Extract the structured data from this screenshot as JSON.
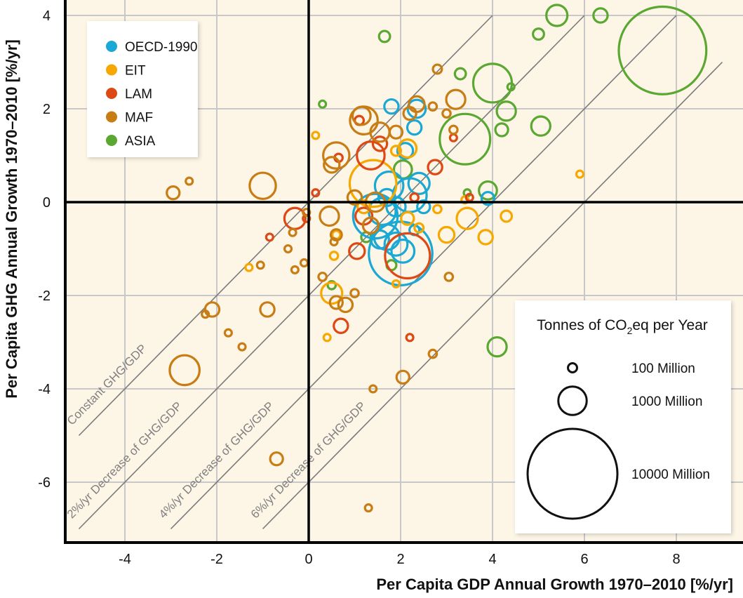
{
  "chart_data": {
    "type": "scatter",
    "subtype": "bubble",
    "title": "",
    "xlabel": "Per Capita GDP Annual Growth 1970–2010 [%/yr]",
    "ylabel": "Per Capita GHG Annual Growth 1970–2010 [%/yr]",
    "xlim": [
      -5.2,
      9.3
    ],
    "ylim": [
      -7.3,
      4.3
    ],
    "xticks": [
      -4,
      -2,
      0,
      2,
      4,
      6,
      8
    ],
    "yticks": [
      4,
      2,
      0,
      -2,
      -4,
      -6
    ],
    "xtick_labels": [
      "-4",
      "-2",
      "0",
      "2",
      "4",
      "6",
      "8"
    ],
    "ytick_labels": [
      "4",
      "2",
      "0",
      "-2",
      "-4",
      "-6"
    ],
    "grid": true,
    "background": "#fdf5e6",
    "legend": {
      "placement": "top-left",
      "entries": [
        {
          "name": "OECD-1990",
          "color": "#1aa8d4"
        },
        {
          "name": "EIT",
          "color": "#f7a800"
        },
        {
          "name": "LAM",
          "color": "#dd4814"
        },
        {
          "name": "MAF",
          "color": "#c87d14"
        },
        {
          "name": "ASIA",
          "color": "#5aa832"
        }
      ]
    },
    "size_legend": {
      "placement": "bottom-right",
      "title_prefix": "Tonnes of CO",
      "title_sub": "2",
      "title_suffix": "eq per Year",
      "entries": [
        {
          "label": "100 Million",
          "value": 100
        },
        {
          "label": "1000 Million",
          "value": 1000
        },
        {
          "label": "10000 Million",
          "value": 10000
        }
      ]
    },
    "reference_lines": [
      {
        "label": "Constant GHG/GDP",
        "offset": 0,
        "x_range": [
          -5,
          4
        ]
      },
      {
        "label": "2%/yr Decrease of GHG/GDP",
        "offset": -2,
        "x_range": [
          -5,
          6
        ]
      },
      {
        "label": "4%/yr Decrease of GHG/GDP",
        "offset": -4,
        "x_range": [
          -3,
          8
        ]
      },
      {
        "label": "6%/yr Decrease of GHG/GDP",
        "offset": -6,
        "x_range": [
          -1,
          9
        ]
      }
    ],
    "series": [
      {
        "name": "ASIA",
        "points": [
          [
            5.4,
            4.0,
            550
          ],
          [
            6.35,
            4.0,
            250
          ],
          [
            5.0,
            3.6,
            150
          ],
          [
            7.7,
            3.25,
            9500
          ],
          [
            1.65,
            3.55,
            150
          ],
          [
            4.0,
            2.55,
            1850
          ],
          [
            4.4,
            2.47,
            60
          ],
          [
            3.3,
            2.75,
            150
          ],
          [
            4.3,
            1.95,
            450
          ],
          [
            5.05,
            1.63,
            450
          ],
          [
            4.2,
            1.55,
            200
          ],
          [
            3.4,
            1.35,
            3150
          ],
          [
            0.3,
            2.1,
            60
          ],
          [
            3.9,
            0.25,
            400
          ],
          [
            3.45,
            0.2,
            60
          ],
          [
            2.05,
            0.7,
            400
          ],
          [
            0.5,
            -1.78,
            80
          ],
          [
            1.25,
            -0.75,
            120
          ],
          [
            1.8,
            -1.35,
            120
          ],
          [
            4.1,
            -3.1,
            450
          ]
        ]
      },
      {
        "name": "OECD-1990",
        "points": [
          [
            1.8,
            2.05,
            250
          ],
          [
            2.35,
            2.0,
            400
          ],
          [
            2.3,
            1.6,
            250
          ],
          [
            2.1,
            1.1,
            300
          ],
          [
            1.75,
            0.35,
            1000
          ],
          [
            2.4,
            0.4,
            550
          ],
          [
            1.45,
            -0.3,
            2450
          ],
          [
            1.6,
            -0.2,
            900
          ],
          [
            1.9,
            -0.1,
            450
          ],
          [
            2.2,
            0.15,
            1400
          ],
          [
            1.7,
            -0.75,
            800
          ],
          [
            2.0,
            -1.1,
            5000
          ],
          [
            1.9,
            -0.9,
            650
          ],
          [
            2.05,
            -1.05,
            650
          ],
          [
            1.55,
            -0.8,
            400
          ],
          [
            2.3,
            -0.6,
            120
          ],
          [
            2.5,
            -0.1,
            200
          ],
          [
            3.9,
            0.08,
            200
          ],
          [
            1.7,
            0.1,
            350
          ]
        ]
      },
      {
        "name": "EIT",
        "points": [
          [
            1.4,
            0.4,
            2700
          ],
          [
            2.15,
            1.15,
            400
          ],
          [
            1.9,
            1.1,
            120
          ],
          [
            0.15,
            1.43,
            60
          ],
          [
            2.15,
            -0.35,
            200
          ],
          [
            2.4,
            -0.55,
            100
          ],
          [
            2.8,
            -0.15,
            80
          ],
          [
            3.0,
            -0.7,
            300
          ],
          [
            3.45,
            -0.35,
            550
          ],
          [
            3.85,
            -0.75,
            250
          ],
          [
            4.3,
            -0.3,
            150
          ],
          [
            3.4,
            0.05,
            60
          ],
          [
            5.9,
            0.6,
            60
          ],
          [
            0.6,
            -0.7,
            80
          ],
          [
            0.55,
            -1.15,
            80
          ],
          [
            0.5,
            -1.95,
            550
          ],
          [
            0.4,
            -2.9,
            60
          ],
          [
            1.9,
            -1.75,
            60
          ],
          [
            -1.3,
            -1.4,
            60
          ],
          [
            1.2,
            -0.1,
            200
          ]
        ]
      },
      {
        "name": "LAM",
        "points": [
          [
            1.35,
            1.0,
            950
          ],
          [
            1.55,
            1.25,
            250
          ],
          [
            1.1,
            1.75,
            100
          ],
          [
            0.65,
            0.95,
            80
          ],
          [
            0.15,
            0.2,
            60
          ],
          [
            2.75,
            0.75,
            250
          ],
          [
            3.15,
            1.38,
            60
          ],
          [
            -0.3,
            -0.35,
            550
          ],
          [
            -0.05,
            -0.35,
            60
          ],
          [
            -0.85,
            -0.75,
            60
          ],
          [
            1.05,
            -1.05,
            300
          ],
          [
            1.2,
            -0.3,
            350
          ],
          [
            2.15,
            -1.15,
            2500
          ],
          [
            0.7,
            -2.65,
            250
          ],
          [
            2.2,
            -2.9,
            60
          ],
          [
            2.3,
            0.1,
            80
          ],
          [
            3.5,
            0.1,
            60
          ]
        ]
      },
      {
        "name": "MAF",
        "points": [
          [
            -2.95,
            0.2,
            200
          ],
          [
            -2.6,
            0.45,
            60
          ],
          [
            -1.0,
            0.35,
            850
          ],
          [
            0.6,
            1.0,
            850
          ],
          [
            0.5,
            0.8,
            300
          ],
          [
            1.2,
            1.75,
            950
          ],
          [
            1.15,
            1.85,
            400
          ],
          [
            1.55,
            1.5,
            450
          ],
          [
            1.9,
            1.5,
            200
          ],
          [
            2.2,
            1.9,
            200
          ],
          [
            2.35,
            2.1,
            300
          ],
          [
            2.8,
            2.85,
            100
          ],
          [
            2.7,
            2.05,
            80
          ],
          [
            3.2,
            2.2,
            450
          ],
          [
            3.0,
            1.9,
            80
          ],
          [
            3.15,
            1.55,
            80
          ],
          [
            1.45,
            0.0,
            450
          ],
          [
            1.0,
            0.1,
            250
          ],
          [
            0.45,
            -0.3,
            450
          ],
          [
            0.6,
            -0.7,
            150
          ],
          [
            0.55,
            -0.85,
            60
          ],
          [
            -0.05,
            -0.22,
            60
          ],
          [
            -0.35,
            -0.65,
            60
          ],
          [
            -0.45,
            -1.0,
            60
          ],
          [
            -0.3,
            -1.45,
            60
          ],
          [
            -0.1,
            -1.3,
            60
          ],
          [
            0.3,
            -1.6,
            80
          ],
          [
            -1.05,
            -1.35,
            60
          ],
          [
            -0.9,
            -2.3,
            250
          ],
          [
            -2.1,
            -2.3,
            250
          ],
          [
            -2.25,
            -2.4,
            60
          ],
          [
            -1.75,
            -2.8,
            60
          ],
          [
            -1.45,
            -3.1,
            60
          ],
          [
            -2.7,
            -3.6,
            1100
          ],
          [
            0.8,
            -2.2,
            250
          ],
          [
            0.6,
            -2.15,
            200
          ],
          [
            1.0,
            -1.95,
            80
          ],
          [
            3.05,
            -1.6,
            80
          ],
          [
            2.7,
            -3.25,
            80
          ],
          [
            2.05,
            -3.75,
            200
          ],
          [
            1.4,
            -4.0,
            60
          ],
          [
            -0.7,
            -5.5,
            200
          ],
          [
            1.3,
            -6.55,
            60
          ],
          [
            1.35,
            -0.5,
            300
          ]
        ]
      }
    ]
  }
}
